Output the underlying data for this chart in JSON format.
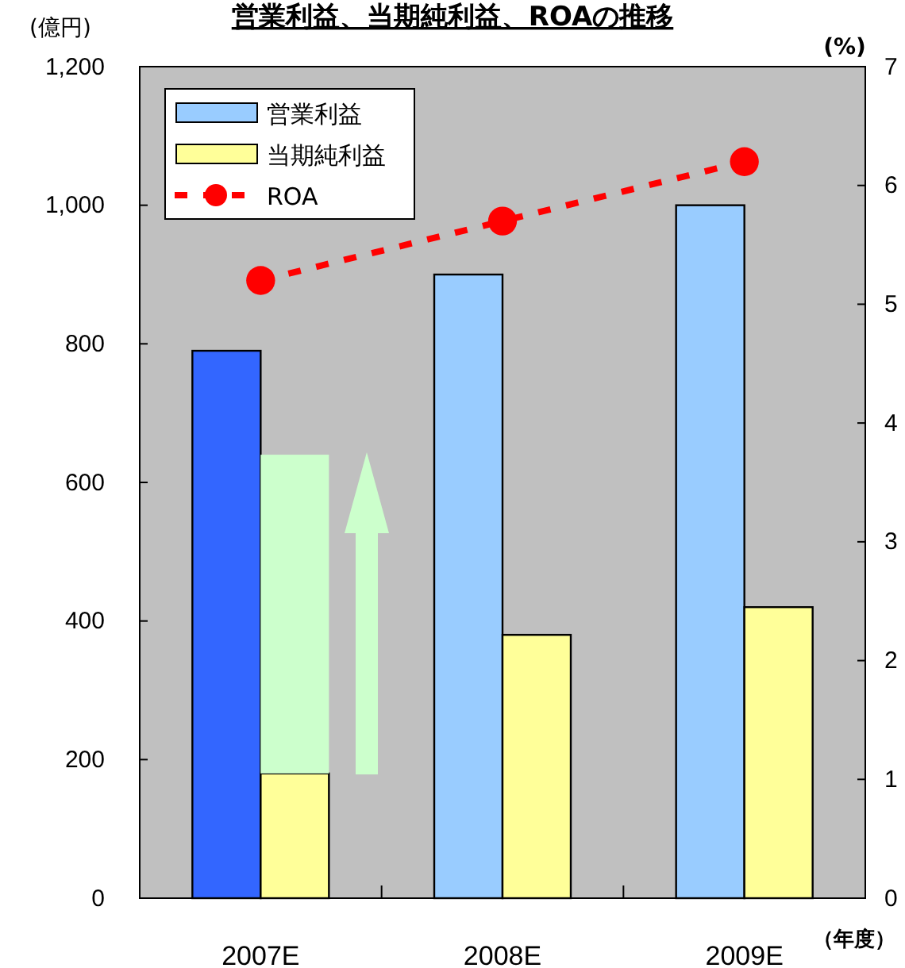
{
  "chart_data": {
    "type": "bar",
    "title": "営業利益、当期純利益、ROAの推移",
    "ylabel": "(億円)",
    "y2label": "(%)",
    "xlabel": "（年度）",
    "categories": [
      "2007E",
      "2008E",
      "2009E"
    ],
    "series": [
      {
        "name": "営業利益",
        "color": "#99ccff",
        "colors": [
          "#3366ff",
          "#99ccff",
          "#99ccff"
        ],
        "values": [
          790,
          900,
          1000
        ]
      },
      {
        "name": "当期純利益",
        "color": "#ffff99",
        "values": [
          180,
          380,
          420
        ]
      },
      {
        "color": "#ccffcc",
        "base": [
          180,
          null,
          null
        ],
        "values": [
          460,
          null,
          null
        ]
      },
      {
        "name": "ROA",
        "type": "line",
        "axis": "y2",
        "color": "#ff0000",
        "marker": "circle",
        "line_style": "dashed",
        "values": [
          5.2,
          5.7,
          6.2
        ]
      }
    ],
    "ylim": [
      0,
      1200
    ],
    "yticks": [
      0,
      {
        "value": 200,
        "label": "200"
      },
      {
        "value": 400,
        "label": "400"
      },
      {
        "value": 600,
        "label": "600"
      },
      {
        "value": 800,
        "label": "800"
      },
      {
        "value": 1000,
        "label": "1,000"
      },
      {
        "value": 1200,
        "label": "1,200"
      }
    ],
    "y2lim": [
      0,
      7
    ],
    "y2ticks": [
      0,
      1,
      2,
      3,
      4,
      5,
      6,
      7
    ],
    "grid": false,
    "legend": "top left"
  }
}
